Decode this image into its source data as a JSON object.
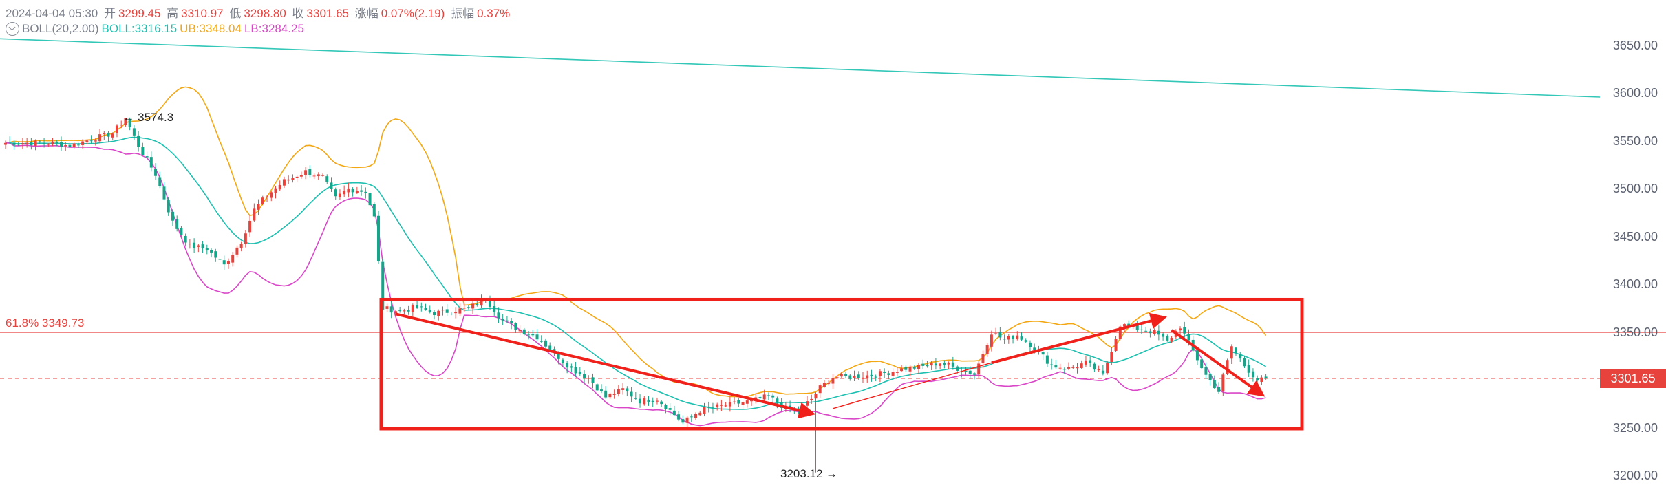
{
  "header": {
    "datetime": "2024-04-04 05:30",
    "open_label": "开",
    "open": "3299.45",
    "high_label": "高",
    "high": "3310.97",
    "low_label": "低",
    "low": "3298.80",
    "close_label": "收",
    "close": "3301.65",
    "change_label": "涨幅",
    "change": "0.07%(2.19)",
    "amp_label": "振幅",
    "amp": "0.37%"
  },
  "indicator": {
    "name": "BOLL(20,2.00)",
    "mid": "BOLL:3316.15",
    "ub": "UB:3348.04",
    "lb": "LB:3284.25"
  },
  "colors": {
    "up": "#15a58a",
    "down": "#e8423d",
    "mid": "#1dbfb0",
    "ub": "#f3a712",
    "lb": "#d946c8",
    "box": "#f0201a",
    "trend": "#33c7b8"
  },
  "annotations": {
    "high_mark": "← 3574.3",
    "low_mark": "3203.12 →",
    "fib": "61.8% 3349.73",
    "price_tag": "3301.65"
  },
  "chart_data": {
    "type": "candlestick",
    "yaxis": {
      "ticks": [
        "3650.00",
        "3600.00",
        "3550.00",
        "3500.00",
        "3450.00",
        "3400.00",
        "3350.00",
        "3300.00",
        "3250.00",
        "3200.00"
      ],
      "ylim": [
        3196,
        3702
      ],
      "position": "right"
    },
    "grid": false,
    "levels": {
      "fib_61_8": 3349.73,
      "last_close": 3301.65
    },
    "extremes": {
      "high": 3574.3,
      "low": 3203.12
    },
    "waypoints": [
      [
        0,
        3548
      ],
      [
        10,
        3548
      ],
      [
        15,
        3545
      ],
      [
        20,
        3552
      ],
      [
        25,
        3558
      ],
      [
        28,
        3574.3
      ],
      [
        31,
        3545
      ],
      [
        35,
        3515
      ],
      [
        39,
        3465
      ],
      [
        43,
        3440
      ],
      [
        47,
        3437
      ],
      [
        51,
        3420
      ],
      [
        55,
        3445
      ],
      [
        58,
        3478
      ],
      [
        61,
        3493
      ],
      [
        65,
        3508
      ],
      [
        70,
        3518
      ],
      [
        74,
        3512
      ],
      [
        77,
        3490
      ],
      [
        80,
        3500
      ],
      [
        84,
        3497
      ],
      [
        86,
        3470
      ],
      [
        88,
        3375
      ],
      [
        92,
        3372
      ],
      [
        96,
        3376
      ],
      [
        100,
        3370
      ],
      [
        104,
        3372
      ],
      [
        108,
        3375
      ],
      [
        112,
        3385
      ],
      [
        116,
        3362
      ],
      [
        120,
        3352
      ],
      [
        124,
        3345
      ],
      [
        128,
        3328
      ],
      [
        132,
        3312
      ],
      [
        136,
        3302
      ],
      [
        140,
        3282
      ],
      [
        144,
        3290
      ],
      [
        148,
        3278
      ],
      [
        152,
        3280
      ],
      [
        155,
        3268
      ],
      [
        158,
        3255
      ],
      [
        162,
        3268
      ],
      [
        166,
        3272
      ],
      [
        170,
        3275
      ],
      [
        174,
        3278
      ],
      [
        178,
        3283
      ],
      [
        182,
        3270
      ],
      [
        185,
        3268
      ],
      [
        188,
        3280
      ],
      [
        190,
        3292
      ],
      [
        193,
        3303
      ],
      [
        197,
        3303
      ],
      [
        202,
        3305
      ],
      [
        206,
        3308
      ],
      [
        210,
        3312
      ],
      [
        214,
        3314
      ],
      [
        218,
        3318
      ],
      [
        222,
        3312
      ],
      [
        226,
        3306
      ],
      [
        230,
        3350
      ],
      [
        233,
        3342
      ],
      [
        236,
        3347
      ],
      [
        240,
        3334
      ],
      [
        244,
        3315
      ],
      [
        248,
        3312
      ],
      [
        252,
        3318
      ],
      [
        256,
        3305
      ],
      [
        260,
        3358
      ],
      [
        264,
        3354
      ],
      [
        268,
        3350
      ],
      [
        271,
        3340
      ],
      [
        274,
        3356
      ],
      [
        277,
        3330
      ],
      [
        280,
        3305
      ],
      [
        283,
        3288
      ],
      [
        286,
        3335
      ],
      [
        289,
        3315
      ],
      [
        292,
        3300
      ],
      [
        294,
        3300
      ]
    ]
  }
}
